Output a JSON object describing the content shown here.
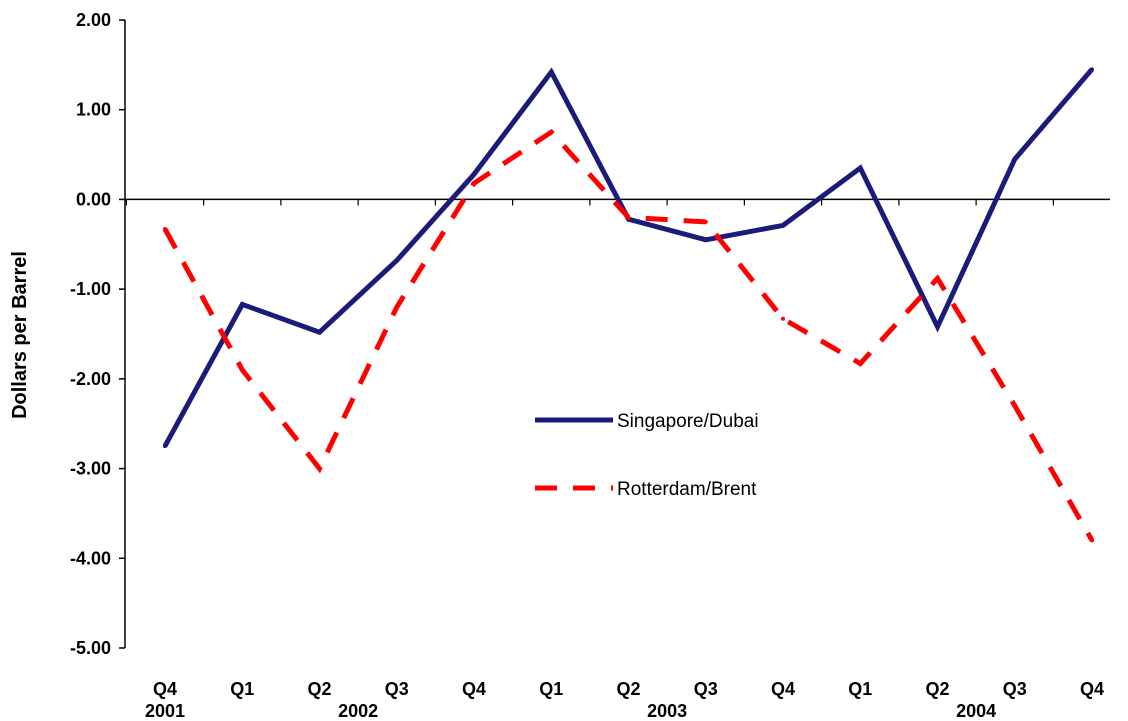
{
  "chart_data": {
    "type": "line",
    "title": "",
    "xlabel": "",
    "ylabel": "Dollars per Barrel",
    "ylim": [
      -5,
      2
    ],
    "yticks": [
      "2.00",
      "1.00",
      "0.00",
      "-1.00",
      "-2.00",
      "-3.00",
      "-4.00",
      "-5.00"
    ],
    "categories": [
      "Q4",
      "Q1",
      "Q2",
      "Q3",
      "Q4",
      "Q1",
      "Q2",
      "Q3",
      "Q4",
      "Q1",
      "Q2",
      "Q3",
      "Q4"
    ],
    "year_labels": [
      {
        "label": "2001",
        "at_index": 0
      },
      {
        "label": "2002",
        "at_index": 2.5
      },
      {
        "label": "2003",
        "at_index": 6.5
      },
      {
        "label": "2004",
        "at_index": 10.5
      }
    ],
    "grid": false,
    "zero_line": true,
    "legend_position": "center",
    "series": [
      {
        "name": "Singapore/Dubai",
        "color": "#1b1b7a",
        "style": "solid",
        "values": [
          -2.75,
          -1.17,
          -1.48,
          -0.68,
          0.28,
          1.42,
          -0.22,
          -0.45,
          -0.29,
          0.35,
          -1.42,
          0.45,
          1.45
        ]
      },
      {
        "name": "Rotterdam/Brent",
        "color": "#ff0000",
        "style": "dashed",
        "values": [
          -0.33,
          -1.9,
          -3.0,
          -1.2,
          0.18,
          0.75,
          -0.2,
          -0.25,
          -1.33,
          -1.83,
          -0.88,
          -2.3,
          -3.8
        ]
      }
    ]
  }
}
